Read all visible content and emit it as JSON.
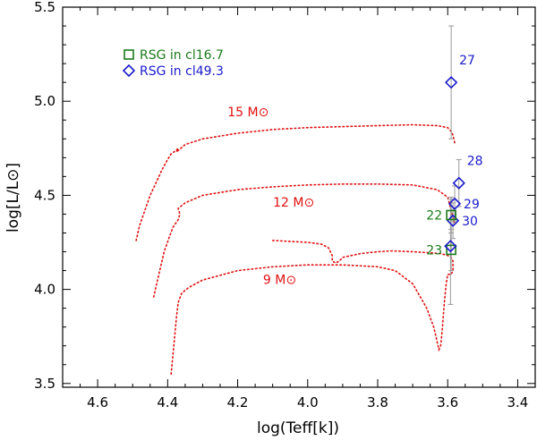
{
  "chart_data": {
    "type": "scatter",
    "title": "",
    "xlabel": "log(Teff[k])",
    "ylabel": "log[L/L⊙]",
    "xlim": [
      4.7,
      3.35
    ],
    "ylim": [
      3.48,
      5.5
    ],
    "xticks": [
      4.6,
      4.4,
      4.2,
      4.0,
      3.8,
      3.6,
      3.4
    ],
    "xtick_labels": [
      "4.6",
      "4.4",
      "4.2",
      "4.0",
      "3.8",
      "3.6",
      "3.4"
    ],
    "yticks": [
      3.5,
      4.0,
      4.5,
      5.0,
      5.5
    ],
    "ytick_labels": [
      "3.5",
      "4.0",
      "4.5",
      "5.0",
      "5.5"
    ],
    "grid": false,
    "legend": {
      "position": "top-left",
      "entries": [
        {
          "label": "RSG in cl16.7",
          "marker": "square",
          "color": "#1a7a1a"
        },
        {
          "label": "RSG in cl49.3",
          "marker": "diamond",
          "color": "#1a1acc"
        }
      ]
    },
    "tracks": [
      {
        "name": "15 M⊙",
        "color": "#e01010",
        "label_at": [
          4.17,
          4.92
        ],
        "x": [
          4.49,
          4.48,
          4.465,
          4.45,
          4.43,
          4.415,
          4.4,
          4.39,
          4.375,
          4.37,
          4.375,
          4.35,
          4.3,
          4.2,
          4.1,
          4.0,
          3.9,
          3.8,
          3.7,
          3.63,
          3.6,
          3.59,
          3.585,
          3.58
        ],
        "y": [
          4.26,
          4.34,
          4.42,
          4.5,
          4.58,
          4.64,
          4.69,
          4.72,
          4.74,
          4.75,
          4.73,
          4.77,
          4.8,
          4.83,
          4.85,
          4.86,
          4.865,
          4.87,
          4.875,
          4.87,
          4.86,
          4.84,
          4.82,
          4.78
        ]
      },
      {
        "name": "12 M⊙",
        "color": "#e01010",
        "label_at": [
          4.04,
          4.44
        ],
        "x": [
          4.44,
          4.43,
          4.42,
          4.41,
          4.395,
          4.385,
          4.37,
          4.365,
          4.37,
          4.35,
          4.3,
          4.2,
          4.1,
          4.0,
          3.9,
          3.8,
          3.7,
          3.63,
          3.6,
          3.59,
          3.58
        ],
        "y": [
          3.96,
          4.04,
          4.12,
          4.2,
          4.28,
          4.33,
          4.37,
          4.4,
          4.43,
          4.46,
          4.5,
          4.53,
          4.545,
          4.555,
          4.56,
          4.56,
          4.555,
          4.53,
          4.49,
          4.42,
          4.35
        ]
      },
      {
        "name": "9 M⊙",
        "color": "#e01010",
        "label_at": [
          4.08,
          4.03
        ],
        "x": [
          4.39,
          4.385,
          4.38,
          4.375,
          4.37,
          4.36,
          4.34,
          4.3,
          4.2,
          4.1,
          4.0,
          3.9,
          3.8,
          3.75,
          3.7,
          3.66,
          3.64,
          3.63,
          3.625,
          3.62,
          3.615,
          3.61,
          3.605,
          3.6,
          3.59,
          3.585,
          3.585,
          3.59,
          3.6,
          3.62,
          3.65,
          3.7,
          3.76,
          3.8,
          3.85,
          3.9,
          3.91,
          3.92,
          3.93,
          3.93,
          3.94,
          3.96,
          4.0,
          4.1
        ],
        "y": [
          3.55,
          3.65,
          3.75,
          3.85,
          3.93,
          3.98,
          4.01,
          4.05,
          4.1,
          4.12,
          4.13,
          4.13,
          4.12,
          4.1,
          4.03,
          3.9,
          3.8,
          3.72,
          3.68,
          3.7,
          3.8,
          3.92,
          4.02,
          4.08,
          4.08,
          4.1,
          4.15,
          4.17,
          4.18,
          4.19,
          4.195,
          4.2,
          4.205,
          4.2,
          4.19,
          4.17,
          4.15,
          4.14,
          4.15,
          4.18,
          4.22,
          4.24,
          4.25,
          4.26
        ]
      }
    ],
    "stars": [
      {
        "label": "27",
        "cluster": "cl49.3",
        "marker": "diamond",
        "x": 3.59,
        "y": 5.1,
        "err_low": 4.8,
        "err_high": 5.4,
        "label_pos": "upper-right"
      },
      {
        "label": "28",
        "cluster": "cl49.3",
        "marker": "diamond",
        "x": 3.568,
        "y": 4.565,
        "err_low": 4.44,
        "err_high": 4.69,
        "label_pos": "upper-right"
      },
      {
        "label": "29",
        "cluster": "cl49.3",
        "marker": "diamond",
        "x": 3.58,
        "y": 4.455,
        "err_low": 4.36,
        "err_high": 4.55,
        "label_pos": "right"
      },
      {
        "label": "30",
        "cluster": "cl49.3",
        "marker": "diamond",
        "x": 3.585,
        "y": 4.365,
        "err_low": 4.27,
        "err_high": 4.46,
        "label_pos": "right"
      },
      {
        "label": "22",
        "cluster": "cl16.7",
        "marker": "square",
        "x": 3.59,
        "y": 4.395,
        "err_low": 4.3,
        "err_high": 4.49,
        "label_pos": "left"
      },
      {
        "label": "23",
        "cluster": "cl16.7",
        "marker": "square",
        "x": 3.59,
        "y": 4.21,
        "err_low": 4.1,
        "err_high": 4.32,
        "label_pos": "left"
      },
      {
        "label": "",
        "cluster": "cl49.3",
        "marker": "diamond",
        "x": 3.592,
        "y": 4.23,
        "err_low": 3.92,
        "err_high": 4.48,
        "label_pos": "none"
      }
    ]
  }
}
